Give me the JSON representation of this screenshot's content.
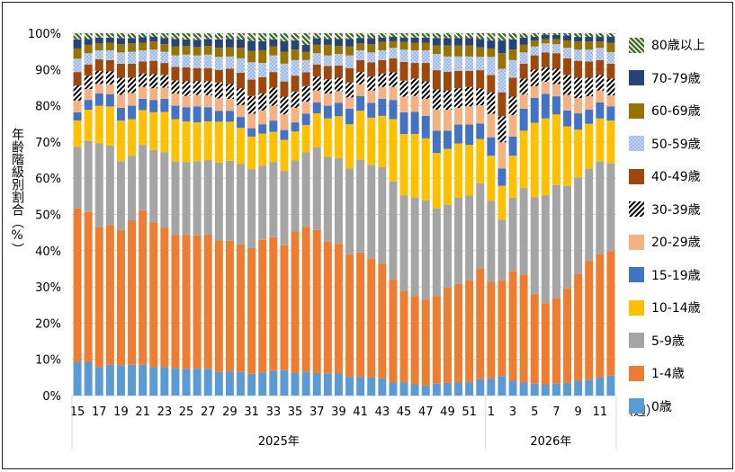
{
  "chart_data": {
    "type": "bar",
    "stacked": "percent",
    "title": "",
    "xlabel": "（週）",
    "ylabel": "年齢階級別割合（%）",
    "ylim": [
      0,
      100
    ],
    "yticks": [
      "0%",
      "10%",
      "20%",
      "30%",
      "40%",
      "50%",
      "60%",
      "70%",
      "80%",
      "90%",
      "100%"
    ],
    "grid": true,
    "legend_position": "right",
    "year_groups": [
      {
        "label": "2025年",
        "weeks": [
          15,
          16,
          17,
          18,
          19,
          20,
          21,
          22,
          23,
          24,
          25,
          26,
          27,
          28,
          29,
          30,
          31,
          32,
          33,
          34,
          35,
          36,
          37,
          38,
          39,
          40,
          41,
          42,
          43,
          44,
          45,
          46,
          47,
          48,
          49,
          50,
          51,
          52
        ]
      },
      {
        "label": "2026年",
        "weeks": [
          1,
          2,
          3,
          4,
          5,
          6,
          7,
          8,
          9,
          10,
          11,
          12
        ]
      }
    ],
    "xtick_labels_shown": [
      "15",
      "17",
      "19",
      "21",
      "23",
      "25",
      "27",
      "29",
      "31",
      "33",
      "35",
      "37",
      "39",
      "41",
      "43",
      "45",
      "47",
      "49",
      "51",
      "1",
      "3",
      "5",
      "7",
      "9",
      "11"
    ],
    "series": [
      {
        "name": "0歳",
        "color": "#5B9BD5",
        "pattern": "solid",
        "values": [
          9.3,
          9.3,
          7.8,
          8.5,
          8.3,
          8.5,
          8.5,
          7.8,
          7.9,
          7.6,
          7.3,
          7.4,
          7.4,
          6.5,
          6.6,
          6.5,
          6.0,
          6.3,
          6.8,
          7.0,
          6.2,
          6.6,
          6.2,
          6.0,
          6.2,
          5.1,
          5.1,
          5.0,
          4.8,
          3.6,
          3.7,
          3.1,
          2.8,
          3.3,
          3.5,
          3.6,
          3.7,
          4.5,
          4.7,
          5.4,
          4.1,
          3.6,
          3.3,
          3.1,
          3.3,
          3.5,
          4.1,
          4.4,
          5.0,
          5.5
        ]
      },
      {
        "name": "1-4歳",
        "color": "#ED7D31",
        "pattern": "solid",
        "values": [
          42.4,
          41.4,
          38.7,
          38.6,
          37.4,
          39.9,
          42.5,
          40.0,
          38.4,
          36.8,
          37.0,
          36.8,
          37.0,
          36.3,
          36.1,
          35.2,
          34.7,
          36.7,
          36.9,
          34.5,
          39.1,
          40.0,
          39.5,
          36.5,
          35.7,
          33.8,
          34.4,
          32.8,
          31.6,
          28.4,
          25.1,
          24.4,
          23.7,
          24.2,
          26.3,
          27.2,
          28.1,
          30.7,
          26.7,
          26.4,
          30.2,
          29.8,
          24.7,
          22.4,
          23.6,
          26.1,
          29.4,
          32.8,
          34.0,
          34.4
        ]
      },
      {
        "name": "5-9歳",
        "color": "#A5A5A5",
        "pattern": "solid",
        "values": [
          17.0,
          19.6,
          23.1,
          21.9,
          19.0,
          17.8,
          18.2,
          20.0,
          20.9,
          20.3,
          20.1,
          20.5,
          20.6,
          21.5,
          22.1,
          22.2,
          21.8,
          20.5,
          20.7,
          20.5,
          19.6,
          20.6,
          22.8,
          23.4,
          23.6,
          23.8,
          25.6,
          25.9,
          26.7,
          27.1,
          26.4,
          27.1,
          27.4,
          24.2,
          22.9,
          23.8,
          23.4,
          23.4,
          22.4,
          16.8,
          20.3,
          23.9,
          26.8,
          29.8,
          31.2,
          28.3,
          26.7,
          25.5,
          25.7,
          24.2
        ]
      },
      {
        "name": "10-14歳",
        "color": "#FFC000",
        "pattern": "solid",
        "values": [
          7.2,
          8.6,
          10.4,
          10.8,
          11.2,
          10.1,
          9.6,
          10.4,
          11.1,
          11.6,
          11.3,
          10.7,
          10.7,
          11.3,
          10.8,
          10.0,
          9.0,
          8.8,
          8.4,
          8.6,
          8.0,
          7.5,
          9.4,
          10.6,
          11.6,
          12.2,
          13.5,
          13.0,
          14.1,
          17.2,
          17.0,
          17.6,
          17.1,
          15.3,
          15.4,
          15.0,
          14.0,
          12.2,
          12.4,
          9.3,
          11.6,
          15.8,
          20.5,
          21.2,
          19.5,
          16.4,
          13.2,
          12.3,
          11.8,
          11.8
        ]
      },
      {
        "name": "15-19歳",
        "color": "#4472C4",
        "pattern": "solid",
        "values": [
          2.3,
          2.7,
          3.4,
          3.4,
          3.5,
          3.7,
          3.1,
          3.4,
          3.6,
          3.7,
          3.9,
          4.4,
          3.9,
          3.0,
          3.0,
          3.0,
          2.3,
          2.6,
          3.1,
          2.7,
          2.5,
          3.1,
          3.0,
          3.5,
          3.7,
          4.3,
          4.1,
          4.1,
          4.7,
          5.3,
          6.0,
          6.1,
          6.2,
          6.1,
          5.0,
          5.2,
          5.6,
          4.3,
          5.1,
          4.8,
          5.3,
          6.1,
          6.9,
          6.8,
          5.0,
          4.4,
          4.5,
          3.9,
          4.4,
          3.9
        ]
      },
      {
        "name": "20-29歳",
        "color": "#F4B183",
        "pattern": "solid",
        "values": [
          3.2,
          3.0,
          2.6,
          2.7,
          3.6,
          3.5,
          3.3,
          3.2,
          3.1,
          3.4,
          3.1,
          3.2,
          3.3,
          3.4,
          3.3,
          3.3,
          4.0,
          3.8,
          4.1,
          4.3,
          4.0,
          3.3,
          3.3,
          3.4,
          3.2,
          3.1,
          3.2,
          3.4,
          3.3,
          3.6,
          4.3,
          4.4,
          4.7,
          5.8,
          5.8,
          4.6,
          5.0,
          5.0,
          6.5,
          7.2,
          5.9,
          3.9,
          3.2,
          3.3,
          3.4,
          4.3,
          4.2,
          3.7,
          3.3,
          3.1
        ]
      },
      {
        "name": "30-39歳",
        "color": "#000000",
        "pattern": "diagonal-stripes-black",
        "values": [
          4.2,
          3.7,
          3.6,
          3.6,
          4.7,
          4.2,
          3.7,
          3.9,
          3.5,
          3.6,
          4.1,
          3.8,
          3.9,
          4.4,
          4.1,
          4.6,
          4.9,
          4.7,
          5.0,
          4.9,
          4.5,
          4.3,
          3.9,
          3.9,
          3.7,
          4.1,
          3.4,
          3.9,
          3.7,
          4.0,
          4.4,
          4.8,
          4.8,
          5.6,
          5.3,
          5.4,
          5.4,
          4.7,
          5.9,
          7.2,
          5.1,
          4.4,
          4.6,
          4.0,
          4.2,
          5.5,
          5.6,
          5.1,
          4.3,
          4.6
        ]
      },
      {
        "name": "40-49歳",
        "color": "#9E480E",
        "pattern": "solid",
        "values": [
          3.7,
          3.1,
          3.2,
          3.1,
          3.9,
          3.9,
          3.3,
          3.7,
          3.3,
          3.7,
          3.8,
          3.6,
          3.6,
          3.5,
          4.2,
          4.3,
          4.5,
          4.5,
          4.3,
          4.2,
          4.4,
          3.8,
          3.3,
          3.7,
          3.4,
          4.0,
          3.3,
          3.9,
          3.7,
          3.9,
          5.2,
          4.3,
          5.1,
          5.3,
          5.2,
          4.8,
          4.4,
          5.0,
          4.8,
          6.6,
          5.2,
          4.1,
          3.9,
          4.1,
          4.3,
          4.6,
          4.7,
          4.5,
          4.1,
          4.1
        ]
      },
      {
        "name": "50-59歳",
        "color": "#9DB9E8",
        "pattern": "dotted-light-blue",
        "values": [
          3.7,
          3.1,
          2.5,
          2.7,
          3.1,
          3.3,
          3.1,
          3.1,
          3.1,
          3.2,
          3.5,
          3.5,
          3.7,
          3.6,
          3.4,
          4.0,
          4.8,
          3.9,
          4.6,
          4.9,
          4.3,
          3.4,
          3.1,
          2.9,
          3.2,
          3.5,
          2.7,
          2.7,
          2.7,
          2.9,
          3.4,
          3.5,
          3.5,
          4.5,
          4.2,
          4.0,
          4.0,
          3.7,
          5.0,
          6.5,
          4.9,
          3.1,
          2.5,
          2.5,
          2.5,
          2.9,
          3.1,
          3.3,
          3.4,
          3.2
        ]
      },
      {
        "name": "60-69歳",
        "color": "#997300",
        "pattern": "solid",
        "values": [
          2.8,
          2.3,
          1.9,
          2.1,
          2.3,
          2.3,
          2.1,
          2.2,
          2.1,
          2.5,
          2.4,
          2.3,
          2.4,
          2.5,
          2.5,
          2.9,
          3.1,
          3.5,
          2.5,
          3.3,
          2.9,
          2.3,
          2.4,
          2.9,
          2.2,
          2.5,
          1.9,
          2.3,
          2.3,
          1.8,
          2.1,
          2.1,
          2.1,
          2.3,
          3.0,
          3.0,
          3.0,
          2.6,
          2.3,
          4.3,
          2.9,
          2.2,
          1.6,
          1.2,
          1.4,
          2.0,
          2.2,
          2.2,
          1.7,
          2.6
        ]
      },
      {
        "name": "70-79歳",
        "color": "#264478",
        "pattern": "solid",
        "values": [
          2.5,
          1.6,
          1.6,
          1.4,
          1.7,
          1.5,
          1.5,
          1.3,
          1.7,
          2.0,
          1.8,
          2.0,
          1.9,
          2.3,
          2.3,
          2.3,
          2.8,
          2.5,
          1.9,
          2.9,
          2.5,
          1.9,
          1.7,
          1.6,
          1.9,
          2.0,
          1.5,
          1.7,
          1.2,
          1.2,
          1.2,
          1.4,
          1.4,
          2.1,
          2.1,
          2.1,
          2.1,
          2.3,
          2.2,
          3.5,
          2.8,
          1.9,
          1.0,
          1.2,
          1.1,
          1.4,
          1.3,
          1.3,
          1.3,
          1.6
        ]
      },
      {
        "name": "80歳以上",
        "color": "#548235",
        "pattern": "diagonal-stripes-green",
        "values": [
          1.7,
          1.6,
          1.2,
          1.2,
          1.3,
          1.3,
          1.1,
          1.0,
          1.3,
          1.6,
          1.7,
          1.8,
          1.6,
          1.7,
          1.6,
          1.7,
          2.1,
          2.2,
          1.7,
          2.2,
          2.0,
          3.2,
          1.4,
          1.6,
          1.6,
          1.6,
          1.3,
          1.3,
          1.2,
          1.0,
          1.2,
          1.2,
          1.2,
          1.3,
          1.3,
          1.3,
          1.3,
          1.6,
          2.0,
          2.0,
          1.7,
          1.2,
          1.0,
          0.4,
          0.5,
          0.6,
          1.0,
          1.0,
          1.0,
          1.0
        ]
      }
    ]
  }
}
